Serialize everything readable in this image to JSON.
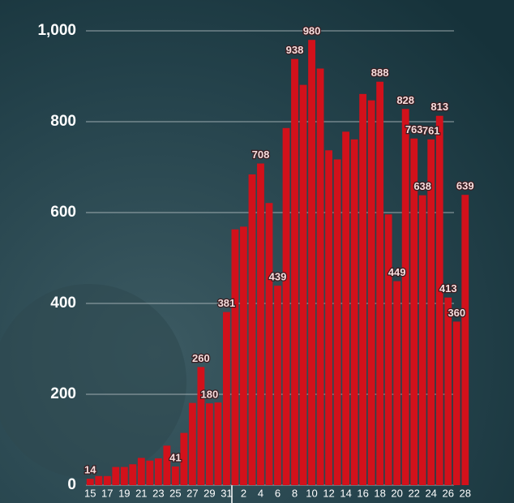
{
  "chart_data": {
    "type": "bar",
    "categories": [
      "15",
      null,
      "17",
      null,
      "19",
      null,
      "21",
      null,
      "23",
      null,
      "25",
      null,
      "27",
      null,
      "29",
      null,
      "31",
      null,
      "2",
      null,
      "4",
      null,
      "6",
      null,
      "8",
      null,
      "10",
      null,
      "12",
      null,
      "14",
      null,
      "16",
      null,
      "18",
      null,
      "20",
      null,
      "22",
      null,
      "24",
      null,
      "26",
      null,
      "28"
    ],
    "values": [
      14,
      20,
      20,
      40,
      40,
      46,
      60,
      54,
      59,
      87,
      41,
      115,
      181,
      260,
      180,
      182,
      381,
      563,
      569,
      684,
      708,
      621,
      439,
      786,
      938,
      881,
      980,
      917,
      737,
      717,
      778,
      761,
      861,
      847,
      888,
      596,
      449,
      828,
      763,
      638,
      761,
      813,
      413,
      360,
      639
    ],
    "value_labels": [
      "14",
      null,
      null,
      null,
      null,
      null,
      null,
      null,
      null,
      null,
      "41",
      null,
      null,
      "260",
      "180",
      null,
      "381",
      null,
      null,
      null,
      "708",
      null,
      "439",
      null,
      "938",
      null,
      "980",
      null,
      null,
      null,
      null,
      null,
      null,
      null,
      "888",
      null,
      "449",
      "828",
      "763",
      "638",
      "761",
      "813",
      "413",
      "360",
      "639"
    ],
    "color": "#d2111b",
    "ylim": [
      0,
      1000
    ],
    "yticks": [
      0,
      200,
      400,
      600,
      800,
      {
        "value": 1000,
        "label": "1,000"
      }
    ],
    "grid": true
  }
}
